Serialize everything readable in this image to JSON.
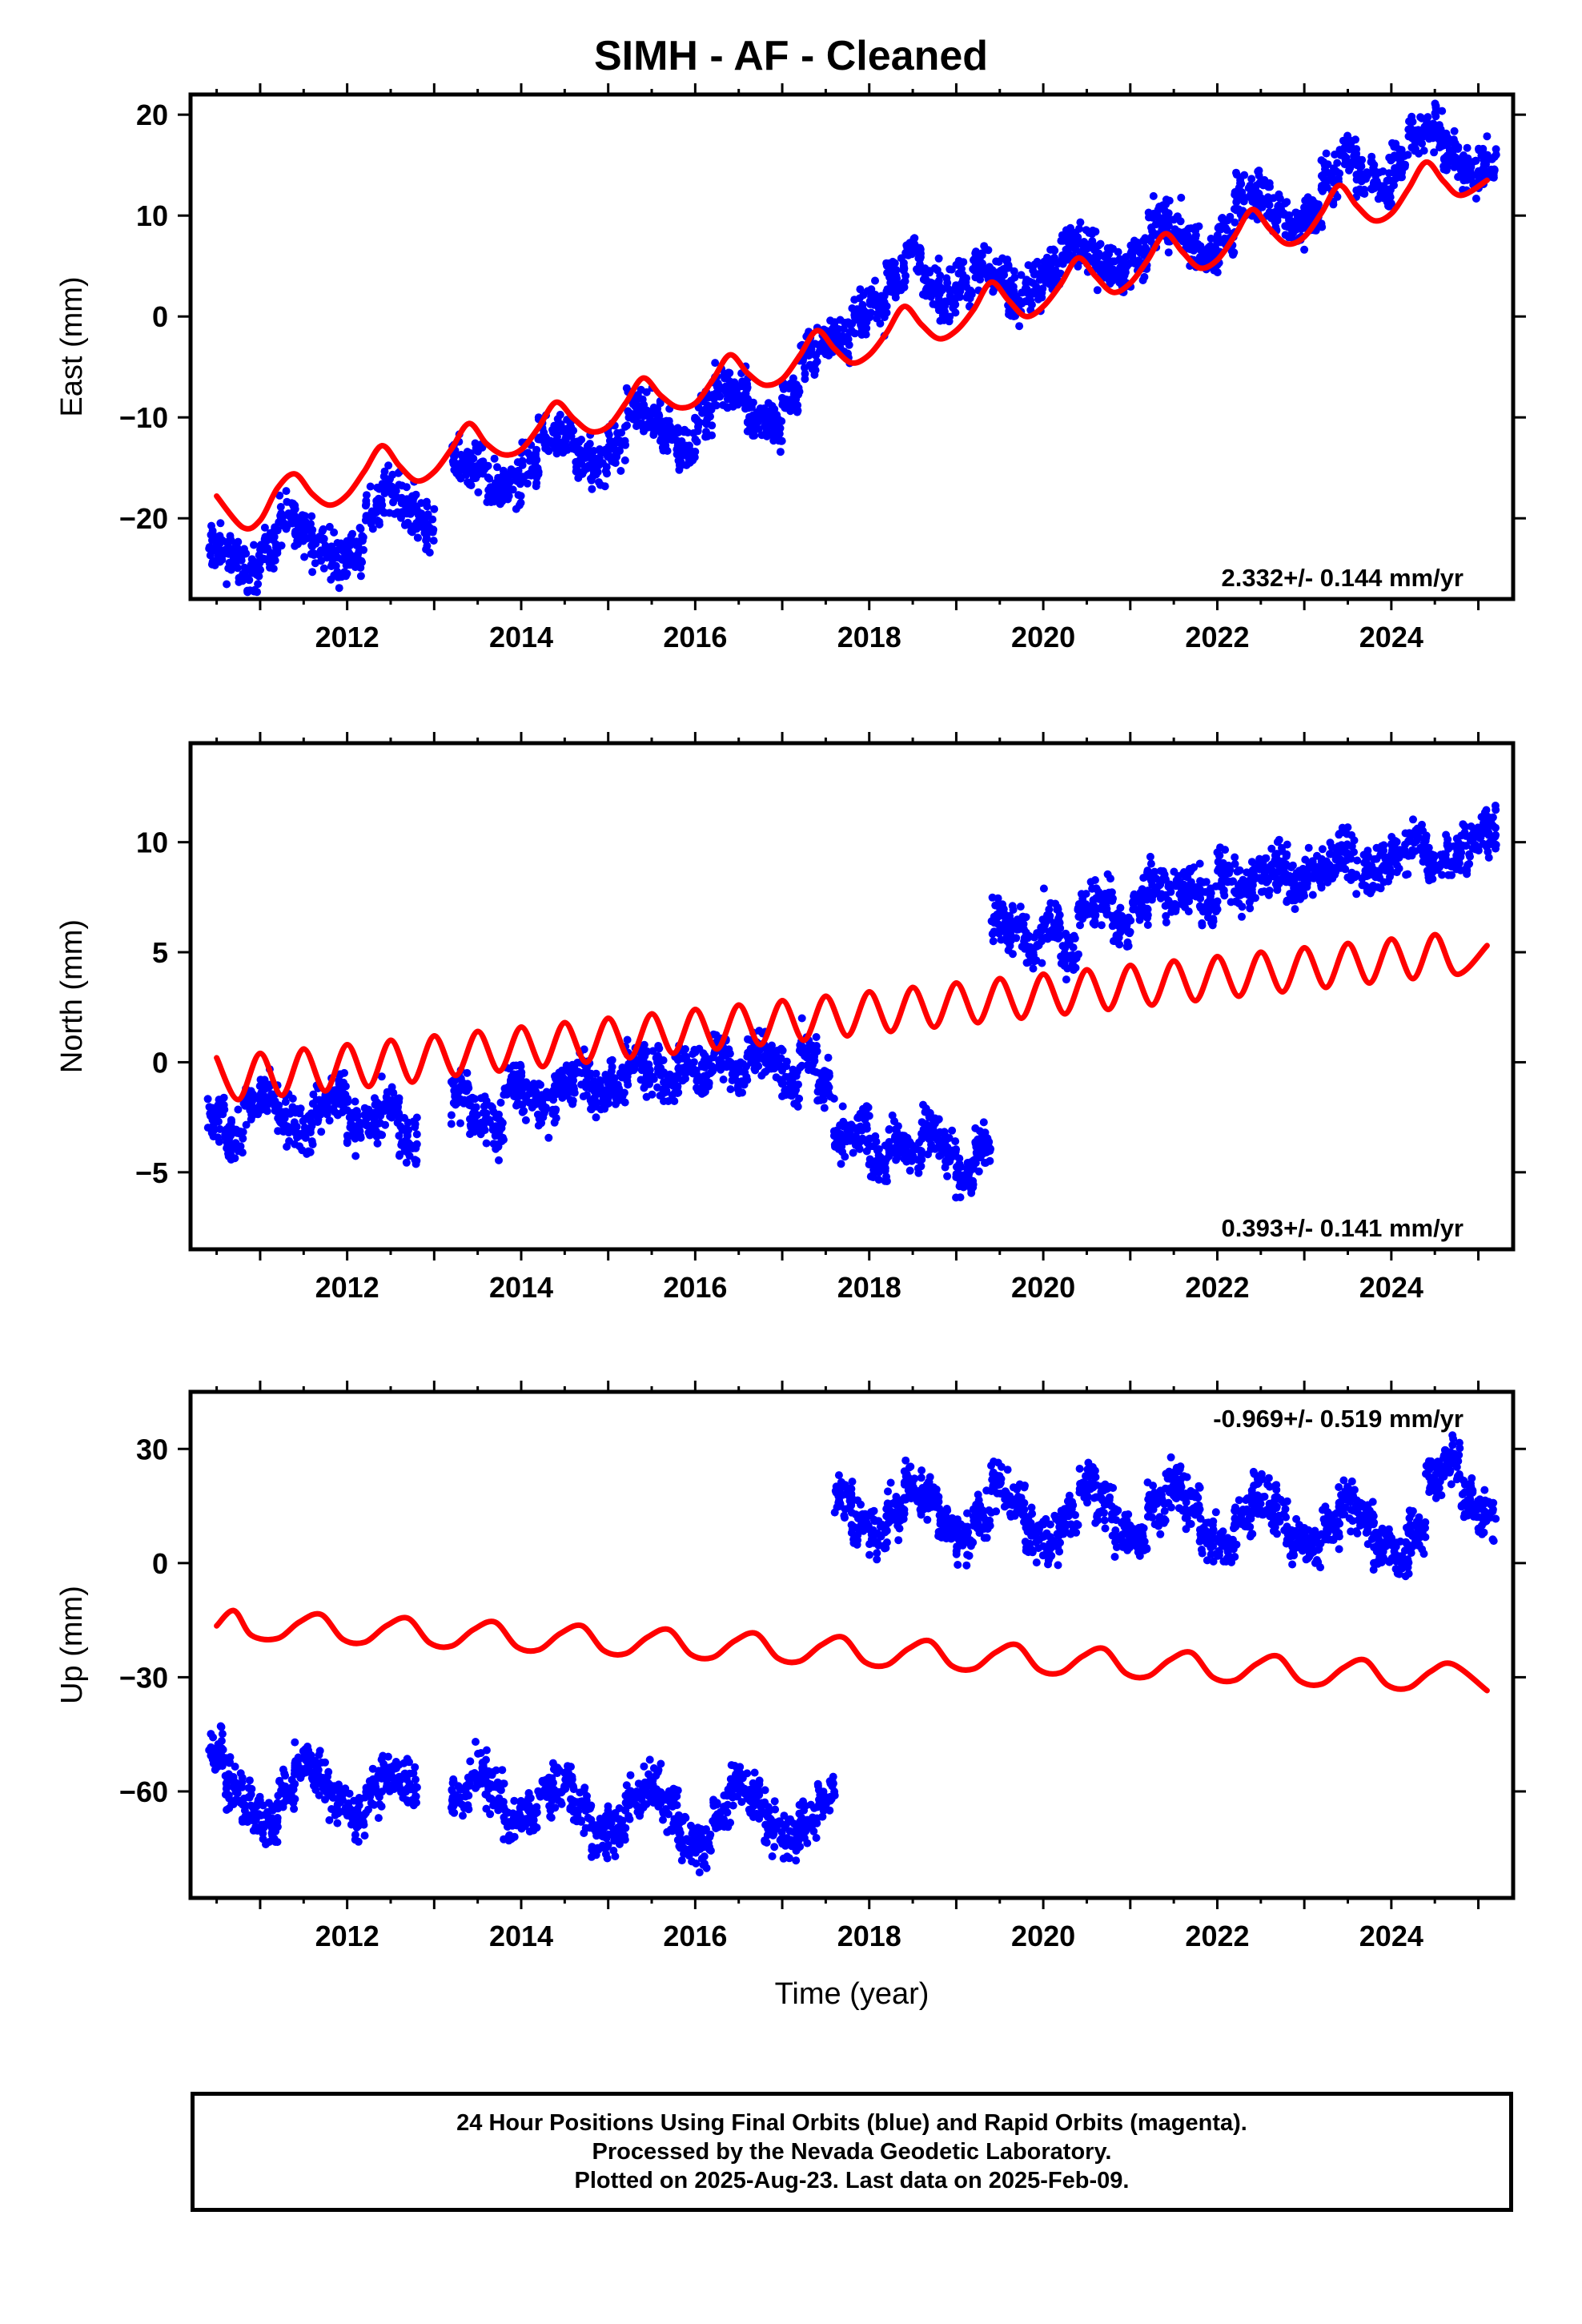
{
  "title": "SIMH  - AF - Cleaned",
  "footer": {
    "line1": "24 Hour Positions Using Final Orbits (blue) and Rapid Orbits (magenta).",
    "line2": "Processed by the Nevada Geodetic Laboratory.",
    "line3": "Plotted on 2025-Aug-23. Last data on 2025-Feb-09."
  },
  "colors": {
    "data": "#0000ff",
    "model": "#ff0000",
    "frame": "#000000"
  },
  "chart_data": [
    {
      "type": "scatter",
      "ylabel": "East (mm)",
      "xlabel": "",
      "xlim": [
        2010.2,
        2025.4
      ],
      "ylim": [
        -28,
        22
      ],
      "xticks": [
        2012,
        2014,
        2016,
        2018,
        2020,
        2022,
        2024
      ],
      "yticks": [
        -20,
        -10,
        0,
        10,
        20
      ],
      "ytick_labels": [
        "−20",
        "−10",
        "0",
        "10",
        "20"
      ],
      "rate_label": "2.332+/- 0.144 mm/yr",
      "rate_position": "bottom-right",
      "series": [
        {
          "role": "daily positions",
          "color": "#0000ff",
          "x": [
            2010.5,
            2010.7,
            2010.9,
            2011.1,
            2011.3,
            2011.5,
            2011.7,
            2011.9,
            2012.1,
            2012.3,
            2012.5,
            2012.7,
            2012.9,
            2013.3,
            2013.5,
            2013.7,
            2013.9,
            2014.1,
            2014.3,
            2014.5,
            2014.7,
            2014.9,
            2015.1,
            2015.3,
            2015.5,
            2015.7,
            2015.9,
            2016.1,
            2016.3,
            2016.5,
            2016.7,
            2016.9,
            2017.1,
            2017.3,
            2017.5,
            2017.7,
            2017.9,
            2018.1,
            2018.3,
            2018.5,
            2018.7,
            2018.9,
            2019.1,
            2019.3,
            2019.5,
            2019.7,
            2019.9,
            2020.1,
            2020.3,
            2020.5,
            2020.7,
            2020.9,
            2021.1,
            2021.3,
            2021.5,
            2021.7,
            2021.9,
            2022.1,
            2022.3,
            2022.5,
            2022.7,
            2022.9,
            2023.1,
            2023.3,
            2023.5,
            2023.7,
            2023.9,
            2024.1,
            2024.3,
            2024.5,
            2024.7,
            2024.9,
            2025.1
          ],
          "y": [
            -23,
            -24,
            -25,
            -23,
            -20,
            -21,
            -23,
            -24,
            -23,
            -19,
            -17,
            -19,
            -21,
            -14,
            -15,
            -17,
            -17,
            -15,
            -12,
            -12,
            -14,
            -15,
            -13,
            -9,
            -10,
            -12,
            -13,
            -10,
            -7,
            -7,
            -10,
            -11,
            -8,
            -4,
            -2,
            -2,
            0,
            1,
            4,
            6,
            3,
            2,
            3,
            5,
            4,
            2,
            3,
            5,
            7,
            7,
            5,
            4,
            6,
            9,
            9,
            7,
            6,
            8,
            12,
            12,
            10,
            9,
            10,
            14,
            16,
            14,
            13,
            15,
            18,
            19,
            16,
            14,
            15
          ]
        },
        {
          "role": "model fit",
          "color": "#ff0000",
          "x": [
            2010.5,
            2010.8,
            2011.0,
            2011.2,
            2011.4,
            2011.6,
            2011.8,
            2012.0,
            2012.2,
            2012.4,
            2012.6,
            2012.8,
            2013.0,
            2013.2,
            2013.4,
            2013.6,
            2013.8,
            2014.0,
            2014.2,
            2014.4,
            2014.6,
            2014.8,
            2015.0,
            2015.2,
            2015.4,
            2015.6,
            2015.8,
            2016.0,
            2016.2,
            2016.4,
            2016.6,
            2016.8,
            2017.0,
            2017.2,
            2017.4,
            2017.6,
            2017.8,
            2018.0,
            2018.2,
            2018.4,
            2018.6,
            2018.8,
            2019.0,
            2019.2,
            2019.4,
            2019.6,
            2019.8,
            2020.0,
            2020.2,
            2020.4,
            2020.6,
            2020.8,
            2021.0,
            2021.2,
            2021.4,
            2021.6,
            2021.8,
            2022.0,
            2022.2,
            2022.4,
            2022.6,
            2022.8,
            2023.0,
            2023.2,
            2023.4,
            2023.6,
            2023.8,
            2024.0,
            2024.2,
            2024.4,
            2024.6,
            2024.8,
            2025.1
          ],
          "y": [
            -17.8,
            -20.9,
            -20.2,
            -17.0,
            -15.6,
            -17.6,
            -18.7,
            -17.7,
            -15.3,
            -12.8,
            -14.8,
            -16.3,
            -15.4,
            -13.1,
            -10.6,
            -12.6,
            -13.7,
            -13.2,
            -11.0,
            -8.5,
            -10.1,
            -11.4,
            -10.9,
            -8.6,
            -6.1,
            -7.8,
            -9.0,
            -8.6,
            -6.3,
            -3.8,
            -5.6,
            -6.8,
            -6.2,
            -3.9,
            -1.4,
            -3.2,
            -4.6,
            -3.8,
            -1.6,
            1.0,
            -0.8,
            -2.2,
            -1.4,
            0.7,
            3.4,
            1.6,
            0.0,
            1.0,
            3.2,
            5.8,
            4.0,
            2.4,
            3.3,
            5.6,
            8.2,
            6.4,
            4.8,
            5.6,
            8.0,
            10.6,
            8.7,
            7.2,
            7.9,
            10.3,
            13.0,
            11.0,
            9.5,
            10.2,
            12.7,
            15.3,
            13.4,
            12.0,
            13.5
          ]
        }
      ]
    },
    {
      "type": "scatter",
      "ylabel": "North (mm)",
      "xlabel": "",
      "xlim": [
        2010.2,
        2025.4
      ],
      "ylim": [
        -8.5,
        14.5
      ],
      "xticks": [
        2012,
        2014,
        2016,
        2018,
        2020,
        2022,
        2024
      ],
      "yticks": [
        -5,
        0,
        5,
        10
      ],
      "ytick_labels": [
        "−5",
        "0",
        "5",
        "10"
      ],
      "rate_label": "0.393+/- 0.141 mm/yr",
      "rate_position": "bottom-right",
      "series": [
        {
          "role": "daily positions",
          "color": "#0000ff",
          "x": [
            2010.5,
            2010.7,
            2010.9,
            2011.1,
            2011.3,
            2011.5,
            2011.7,
            2011.9,
            2012.1,
            2012.3,
            2012.5,
            2012.7,
            2013.3,
            2013.5,
            2013.7,
            2013.9,
            2014.1,
            2014.3,
            2014.5,
            2014.7,
            2014.9,
            2015.1,
            2015.3,
            2015.5,
            2015.7,
            2015.9,
            2016.1,
            2016.3,
            2016.5,
            2016.7,
            2016.9,
            2017.1,
            2017.3,
            2017.5,
            2017.7,
            2017.9,
            2018.1,
            2018.3,
            2018.5,
            2018.7,
            2018.9,
            2019.1,
            2019.3,
            2019.5,
            2019.7,
            2019.9,
            2020.1,
            2020.3,
            2020.5,
            2020.7,
            2020.9,
            2021.1,
            2021.3,
            2021.5,
            2021.7,
            2021.9,
            2022.1,
            2022.3,
            2022.5,
            2022.7,
            2022.9,
            2023.1,
            2023.3,
            2023.5,
            2023.7,
            2023.9,
            2024.1,
            2024.3,
            2024.5,
            2024.7,
            2024.9,
            2025.1
          ],
          "y": [
            -2.5,
            -3.5,
            -2.0,
            -1.5,
            -2.5,
            -3.0,
            -2.0,
            -1.5,
            -3.0,
            -2.5,
            -2.0,
            -3.5,
            -1.5,
            -2.5,
            -3.0,
            -1.0,
            -1.5,
            -2.0,
            -1.0,
            -0.5,
            -1.5,
            -1.0,
            0.0,
            -0.5,
            -1.0,
            0.0,
            -0.5,
            0.5,
            -0.5,
            0.5,
            0.0,
            -1.0,
            0.5,
            -1.0,
            -3.5,
            -3.0,
            -4.5,
            -3.5,
            -4.0,
            -3.0,
            -4.0,
            -5.0,
            -4.0,
            6.5,
            6.0,
            5.5,
            6.5,
            5.0,
            7.0,
            7.5,
            6.0,
            7.0,
            8.0,
            7.5,
            8.0,
            7.0,
            8.5,
            8.0,
            8.5,
            9.0,
            8.0,
            8.5,
            9.0,
            9.5,
            8.5,
            9.0,
            9.5,
            10.0,
            9.0,
            9.5,
            10.0,
            10.5
          ]
        },
        {
          "role": "model fit",
          "color": "#ff0000",
          "x": [
            2010.5,
            2010.75,
            2011.0,
            2011.25,
            2011.5,
            2011.75,
            2012.0,
            2012.25,
            2012.5,
            2012.75,
            2013.0,
            2013.25,
            2013.5,
            2013.75,
            2014.0,
            2014.25,
            2014.5,
            2014.75,
            2015.0,
            2015.25,
            2015.5,
            2015.75,
            2016.0,
            2016.25,
            2016.5,
            2016.75,
            2017.0,
            2017.25,
            2017.5,
            2017.75,
            2018.0,
            2018.25,
            2018.5,
            2018.75,
            2019.0,
            2019.25,
            2019.5,
            2019.75,
            2020.0,
            2020.25,
            2020.5,
            2020.75,
            2021.0,
            2021.25,
            2021.5,
            2021.75,
            2022.0,
            2022.25,
            2022.5,
            2022.75,
            2023.0,
            2023.25,
            2023.5,
            2023.75,
            2024.0,
            2024.25,
            2024.5,
            2024.75,
            2025.1
          ],
          "y": [
            0.2,
            -1.7,
            0.4,
            -1.5,
            0.6,
            -1.3,
            0.8,
            -1.1,
            1.0,
            -0.9,
            1.2,
            -0.6,
            1.4,
            -0.4,
            1.6,
            -0.2,
            1.8,
            0.0,
            2.0,
            0.2,
            2.2,
            0.4,
            2.4,
            0.6,
            2.6,
            0.8,
            2.8,
            1.0,
            3.0,
            1.2,
            3.2,
            1.4,
            3.4,
            1.6,
            3.6,
            1.8,
            3.8,
            2.0,
            4.0,
            2.2,
            4.2,
            2.4,
            4.4,
            2.6,
            4.6,
            2.8,
            4.8,
            3.0,
            5.0,
            3.2,
            5.2,
            3.4,
            5.4,
            3.6,
            5.6,
            3.8,
            5.8,
            4.0,
            5.3
          ]
        }
      ]
    },
    {
      "type": "scatter",
      "ylabel": "Up (mm)",
      "xlabel": "Time (year)",
      "xlim": [
        2010.2,
        2025.4
      ],
      "ylim": [
        -88,
        45
      ],
      "xticks": [
        2012,
        2014,
        2016,
        2018,
        2020,
        2022,
        2024
      ],
      "yticks": [
        -60,
        -30,
        0,
        30
      ],
      "ytick_labels": [
        "−60",
        "−30",
        "0",
        "30"
      ],
      "rate_label": "-0.969+/- 0.519 mm/yr",
      "rate_position": "top-right",
      "series": [
        {
          "role": "daily positions",
          "color": "#0000ff",
          "x": [
            2010.5,
            2010.7,
            2010.9,
            2011.1,
            2011.3,
            2011.5,
            2011.7,
            2011.9,
            2012.1,
            2012.3,
            2012.5,
            2012.7,
            2013.3,
            2013.5,
            2013.7,
            2013.9,
            2014.1,
            2014.3,
            2014.5,
            2014.7,
            2014.9,
            2015.1,
            2015.3,
            2015.5,
            2015.7,
            2015.9,
            2016.1,
            2016.3,
            2016.5,
            2016.7,
            2016.9,
            2017.1,
            2017.3,
            2017.5,
            2017.7,
            2017.9,
            2018.1,
            2018.3,
            2018.5,
            2018.7,
            2018.9,
            2019.1,
            2019.3,
            2019.5,
            2019.7,
            2019.9,
            2020.1,
            2020.3,
            2020.5,
            2020.7,
            2020.9,
            2021.1,
            2021.3,
            2021.5,
            2021.7,
            2021.9,
            2022.1,
            2022.3,
            2022.5,
            2022.7,
            2022.9,
            2023.1,
            2023.3,
            2023.5,
            2023.7,
            2023.9,
            2024.1,
            2024.3,
            2024.5,
            2024.7,
            2024.9,
            2025.1
          ],
          "y": [
            -50,
            -58,
            -65,
            -68,
            -60,
            -52,
            -56,
            -62,
            -66,
            -60,
            -55,
            -58,
            -62,
            -55,
            -60,
            -68,
            -66,
            -60,
            -58,
            -64,
            -72,
            -70,
            -62,
            -58,
            -64,
            -72,
            -74,
            -66,
            -58,
            -62,
            -70,
            -72,
            -68,
            -62,
            18,
            10,
            8,
            14,
            20,
            18,
            10,
            6,
            12,
            20,
            16,
            8,
            6,
            12,
            22,
            16,
            8,
            6,
            14,
            20,
            16,
            6,
            4,
            12,
            18,
            14,
            6,
            4,
            10,
            16,
            12,
            4,
            2,
            8,
            22,
            28,
            16,
            12
          ]
        },
        {
          "role": "model fit",
          "color": "#ff0000",
          "x": [
            2010.5,
            2010.7,
            2010.9,
            2011.2,
            2011.45,
            2011.7,
            2011.95,
            2012.2,
            2012.45,
            2012.7,
            2012.95,
            2013.2,
            2013.45,
            2013.7,
            2013.95,
            2014.2,
            2014.45,
            2014.7,
            2014.95,
            2015.2,
            2015.45,
            2015.7,
            2015.95,
            2016.2,
            2016.45,
            2016.7,
            2016.95,
            2017.2,
            2017.45,
            2017.7,
            2017.95,
            2018.2,
            2018.45,
            2018.7,
            2018.95,
            2019.2,
            2019.45,
            2019.7,
            2019.95,
            2020.2,
            2020.45,
            2020.7,
            2020.95,
            2021.2,
            2021.45,
            2021.7,
            2021.95,
            2022.2,
            2022.45,
            2022.7,
            2022.95,
            2023.2,
            2023.45,
            2023.7,
            2023.95,
            2024.2,
            2024.45,
            2024.7,
            2025.1
          ],
          "y": [
            -16.5,
            -12.5,
            -19.0,
            -19.8,
            -15.5,
            -13.5,
            -20.0,
            -20.8,
            -16.5,
            -14.5,
            -21.0,
            -21.8,
            -17.5,
            -15.5,
            -22.0,
            -22.8,
            -18.5,
            -16.5,
            -23.0,
            -23.8,
            -19.5,
            -17.5,
            -24.0,
            -24.8,
            -20.5,
            -18.5,
            -25.0,
            -25.8,
            -21.5,
            -19.5,
            -26.0,
            -26.8,
            -22.5,
            -20.5,
            -27.0,
            -27.8,
            -23.5,
            -21.5,
            -28.0,
            -28.8,
            -24.5,
            -22.5,
            -29.0,
            -29.8,
            -25.5,
            -23.5,
            -30.0,
            -30.8,
            -26.5,
            -24.5,
            -31.0,
            -31.8,
            -27.5,
            -25.5,
            -32.0,
            -32.8,
            -28.5,
            -26.5,
            -33.5
          ]
        }
      ]
    }
  ]
}
